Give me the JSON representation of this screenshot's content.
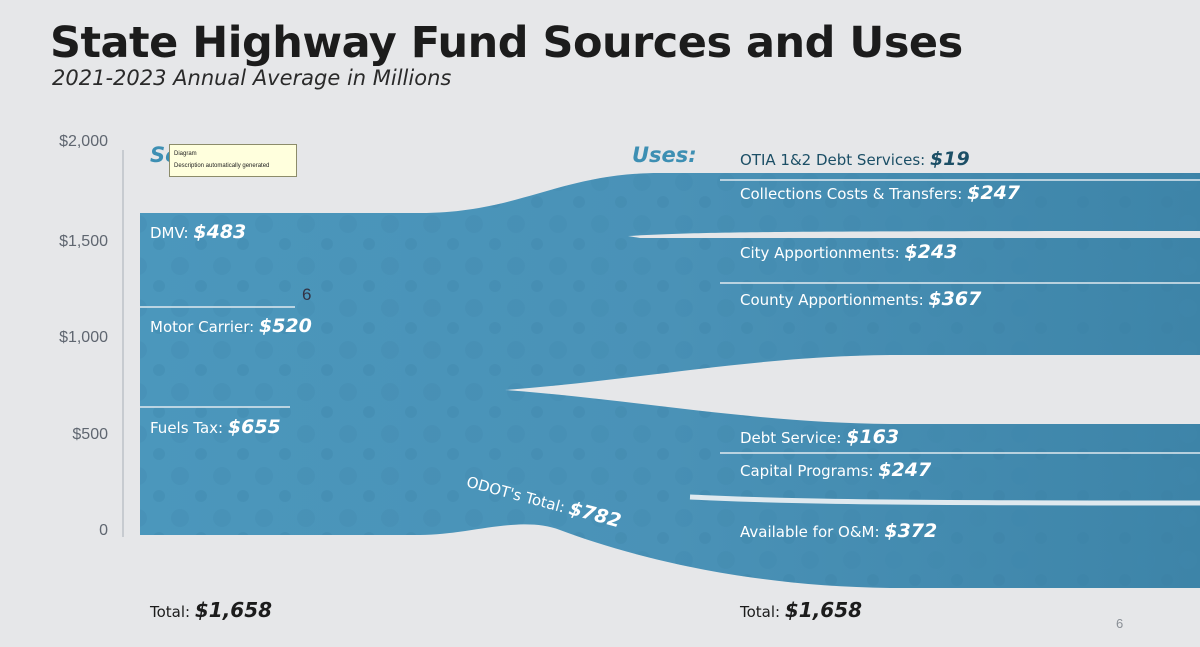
{
  "title": "State Highway Fund Sources and Uses",
  "subtitle": "2021-2023 Annual Average in Millions",
  "axis": {
    "ticks": [
      "$2,000",
      "$1,500",
      "$1,000",
      "$500",
      "0"
    ]
  },
  "sources": {
    "heading_visible": "Sc",
    "items": [
      {
        "name": "DMV:",
        "value": "$483"
      },
      {
        "name": "Motor Carrier:",
        "value": "$520"
      },
      {
        "name": "Fuels Tax:",
        "value": "$655"
      }
    ],
    "total_label": "Total:",
    "total_value": "$1,658"
  },
  "odot_total": {
    "name": "ODOT's Total:",
    "value": "$782"
  },
  "uses": {
    "heading": "Uses:",
    "items": [
      {
        "name": "OTIA 1&2 Debt Services:",
        "value": "$19"
      },
      {
        "name": "Collections Costs & Transfers:",
        "value": "$247"
      },
      {
        "name": "City Apportionments:",
        "value": "$243"
      },
      {
        "name": "County Apportionments:",
        "value": "$367"
      },
      {
        "name": "Debt Service:",
        "value": "$163"
      },
      {
        "name": "Capital Programs:",
        "value": "$247"
      },
      {
        "name": "Available for O&M:",
        "value": "$372"
      }
    ],
    "total_label": "Total:",
    "total_value": "$1,658"
  },
  "tooltip": {
    "line1": "Diagram",
    "line2": "Description automatically generated"
  },
  "badge": "6",
  "page_number": "6",
  "colors": {
    "flow": "#4a94b9",
    "flow_dark": "#3f86aa",
    "divider": "#dfe9ef",
    "heading": "#3d8fb3"
  }
}
